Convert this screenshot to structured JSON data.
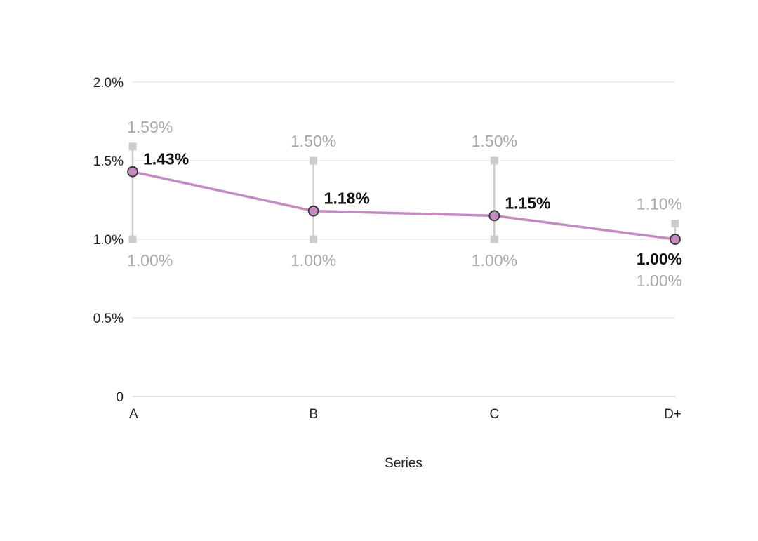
{
  "chart_data": {
    "type": "line",
    "xlabel": "Series",
    "ylabel": "",
    "ylim": [
      0,
      2.0
    ],
    "y_ticks": [
      {
        "value": 0,
        "label": "0"
      },
      {
        "value": 0.5,
        "label": "0.5%"
      },
      {
        "value": 1.0,
        "label": "1.0%"
      },
      {
        "value": 1.5,
        "label": "1.5%"
      },
      {
        "value": 2.0,
        "label": "2.0%"
      }
    ],
    "categories": [
      "A",
      "B",
      "C",
      "D+"
    ],
    "series": [
      {
        "values": [
          1.43,
          1.18,
          1.15,
          1.0
        ],
        "labels": [
          "1.43%",
          "1.18%",
          "1.15%",
          "1.00%"
        ]
      }
    ],
    "range_high": [
      1.59,
      1.5,
      1.5,
      1.1
    ],
    "range_high_labels": [
      "1.59%",
      "1.50%",
      "1.50%",
      "1.10%"
    ],
    "range_low": [
      1.0,
      1.0,
      1.0,
      1.0
    ],
    "range_low_labels": [
      "1.00%",
      "1.00%",
      "1.00%",
      "1.00%"
    ],
    "grid": true,
    "colors": {
      "line": "#c48bc0",
      "marker_fill": "#c48bc0",
      "marker_stroke": "#333333",
      "range": "#cccccc",
      "range_text": "#a8a8a8",
      "grid": "#ececec"
    }
  }
}
